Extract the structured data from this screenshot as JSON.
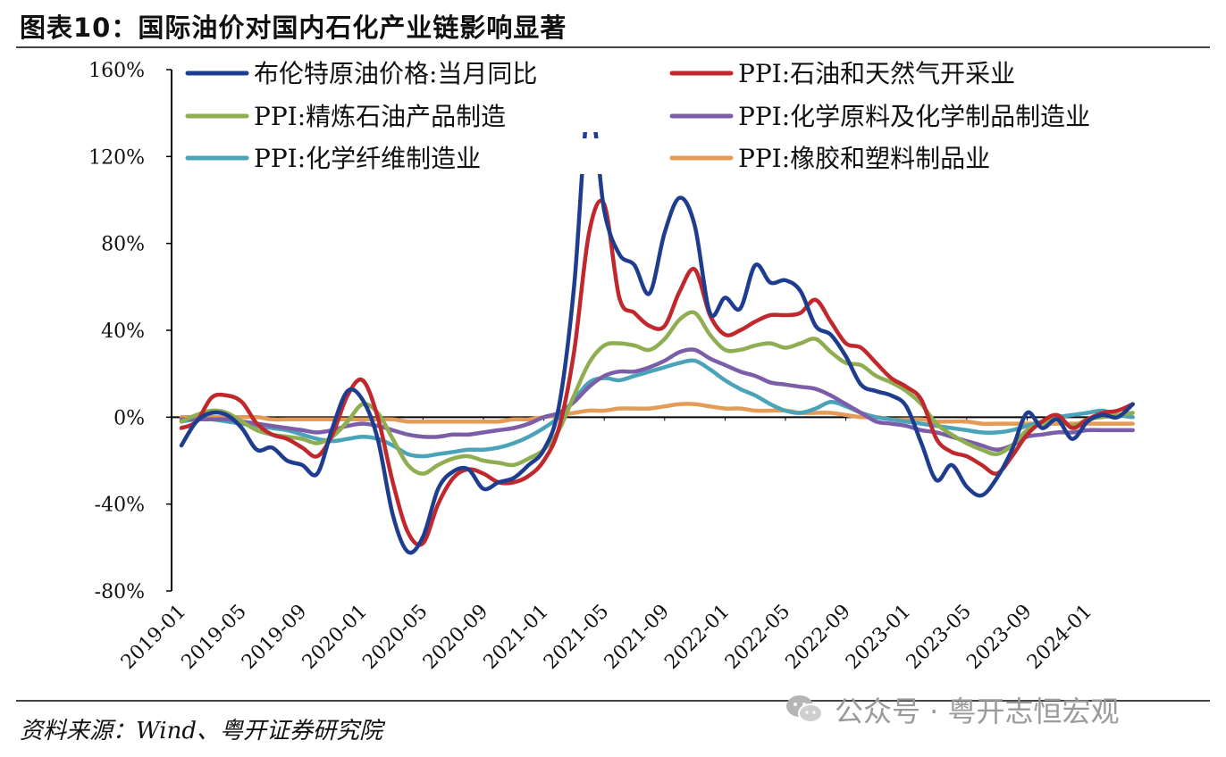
{
  "header": {
    "title": "图表10：国际油价对国内石化产业链影响显著"
  },
  "footer": {
    "source": "资料来源：Wind、粤开证券研究院",
    "watermark": "公众号 · 粤开志恒宏观"
  },
  "chart_data": {
    "type": "line",
    "title": "图表10：国际油价对国内石化产业链影响显著",
    "xlabel": "",
    "ylabel": "",
    "ylim": [
      -80,
      160
    ],
    "yticks": [
      -80,
      -40,
      0,
      40,
      80,
      120,
      160
    ],
    "ytick_labels": [
      "-80%",
      "-40%",
      "0%",
      "40%",
      "80%",
      "120%",
      "160%"
    ],
    "xticks": [
      "2019-01",
      "2019-05",
      "2019-09",
      "2020-01",
      "2020-05",
      "2020-09",
      "2021-01",
      "2021-05",
      "2021-09",
      "2022-01",
      "2022-05",
      "2022-09",
      "2023-01",
      "2023-05",
      "2023-09",
      "2024-01"
    ],
    "x": [
      "2019-01",
      "2019-02",
      "2019-03",
      "2019-04",
      "2019-05",
      "2019-06",
      "2019-07",
      "2019-08",
      "2019-09",
      "2019-10",
      "2019-11",
      "2019-12",
      "2020-01",
      "2020-02",
      "2020-03",
      "2020-04",
      "2020-05",
      "2020-06",
      "2020-07",
      "2020-08",
      "2020-09",
      "2020-10",
      "2020-11",
      "2020-12",
      "2021-01",
      "2021-02",
      "2021-03",
      "2021-04",
      "2021-05",
      "2021-06",
      "2021-07",
      "2021-08",
      "2021-09",
      "2021-10",
      "2021-11",
      "2021-12",
      "2022-01",
      "2022-02",
      "2022-03",
      "2022-04",
      "2022-05",
      "2022-06",
      "2022-07",
      "2022-08",
      "2022-09",
      "2022-10",
      "2022-11",
      "2022-12",
      "2023-01",
      "2023-02",
      "2023-03",
      "2023-04",
      "2023-05",
      "2023-06",
      "2023-07",
      "2023-08",
      "2023-09",
      "2023-10",
      "2023-11",
      "2023-12",
      "2024-01",
      "2024-02",
      "2024-03",
      "2024-04"
    ],
    "legend_position": "top",
    "series": [
      {
        "name": "布伦特原油价格:当月同比",
        "color": "#1f3d8f",
        "values": [
          -13,
          -2,
          2,
          1,
          -5,
          -15,
          -14,
          -20,
          -22,
          -26,
          -5,
          12,
          8,
          -10,
          -45,
          -62,
          -55,
          -33,
          -25,
          -24,
          -33,
          -30,
          -28,
          -22,
          -15,
          5,
          60,
          145,
          95,
          75,
          70,
          57,
          85,
          101,
          88,
          48,
          55,
          50,
          70,
          62,
          63,
          58,
          42,
          38,
          28,
          15,
          12,
          10,
          5,
          -12,
          -29,
          -22,
          -32,
          -36,
          -28,
          -15,
          2,
          -5,
          -1,
          -10,
          -2,
          1,
          0,
          6
        ]
      },
      {
        "name": "PPI:石油和天然气开采业",
        "color": "#c0282d",
        "values": [
          -5,
          -2,
          9,
          10,
          7,
          -3,
          -8,
          -10,
          -14,
          -18,
          -8,
          10,
          17,
          0,
          -30,
          -53,
          -58,
          -40,
          -28,
          -24,
          -26,
          -30,
          -30,
          -27,
          -20,
          -5,
          30,
          85,
          98,
          55,
          48,
          42,
          42,
          58,
          68,
          47,
          38,
          40,
          44,
          47,
          47,
          48,
          54,
          44,
          34,
          32,
          25,
          18,
          14,
          8,
          -10,
          -16,
          -18,
          -22,
          -26,
          -18,
          -8,
          -2,
          1,
          -5,
          -1,
          2,
          3,
          6
        ]
      },
      {
        "name": "PPI:精炼石油产品制造",
        "color": "#8fae52",
        "values": [
          -2,
          1,
          3,
          2,
          -2,
          -6,
          -8,
          -9,
          -10,
          -12,
          -9,
          -2,
          6,
          2,
          -10,
          -22,
          -26,
          -22,
          -19,
          -18,
          -20,
          -21,
          -22,
          -19,
          -15,
          -6,
          10,
          25,
          33,
          34,
          33,
          31,
          36,
          45,
          48,
          38,
          31,
          31,
          33,
          34,
          32,
          34,
          36,
          30,
          25,
          24,
          19,
          16,
          12,
          6,
          -3,
          -8,
          -12,
          -15,
          -17,
          -13,
          -6,
          -3,
          -1,
          -4,
          -1,
          0,
          1,
          2
        ]
      },
      {
        "name": "PPI:化学原料及化学制品制造业",
        "color": "#7b5ea7",
        "values": [
          -1,
          -1,
          -1,
          -1,
          -2,
          -3,
          -4,
          -5,
          -6,
          -7,
          -6,
          -4,
          -3,
          -4,
          -6,
          -8,
          -9,
          -9,
          -8,
          -8,
          -7,
          -6,
          -5,
          -3,
          0,
          2,
          7,
          14,
          19,
          21,
          21,
          23,
          26,
          30,
          31,
          27,
          24,
          21,
          19,
          16,
          15,
          14,
          13,
          10,
          6,
          2,
          -2,
          -3,
          -4,
          -6,
          -7,
          -9,
          -11,
          -13,
          -15,
          -13,
          -9,
          -8,
          -7,
          -7,
          -6,
          -6,
          -6,
          -6
        ]
      },
      {
        "name": "PPI:化学纤维制造业",
        "color": "#4aa3b8",
        "values": [
          -2,
          -1,
          -1,
          -2,
          -3,
          -4,
          -5,
          -6,
          -8,
          -10,
          -11,
          -10,
          -9,
          -10,
          -13,
          -17,
          -18,
          -17,
          -16,
          -15,
          -15,
          -14,
          -12,
          -9,
          -5,
          0,
          8,
          16,
          18,
          17,
          19,
          21,
          23,
          25,
          26,
          22,
          17,
          13,
          10,
          6,
          3,
          2,
          4,
          7,
          5,
          2,
          0,
          -1,
          -2,
          -3,
          -4,
          -5,
          -6,
          -7,
          -7,
          -6,
          -4,
          -2,
          0,
          1,
          2,
          3,
          1,
          0
        ]
      },
      {
        "name": "PPI:橡胶和塑料制品业",
        "color": "#e39b56",
        "values": [
          0,
          0,
          0,
          0,
          0,
          0,
          -1,
          -1,
          -1,
          -1,
          -1,
          -1,
          -1,
          -1,
          -1,
          -2,
          -2,
          -2,
          -2,
          -2,
          -2,
          -2,
          -1,
          -1,
          0,
          1,
          2,
          3,
          3,
          4,
          4,
          4,
          5,
          6,
          6,
          5,
          4,
          4,
          3,
          3,
          3,
          2,
          2,
          2,
          1,
          0,
          0,
          -1,
          -1,
          -1,
          -2,
          -2,
          -2,
          -3,
          -3,
          -3,
          -3,
          -3,
          -3,
          -3,
          -3,
          -3,
          -3,
          -3
        ]
      }
    ]
  }
}
